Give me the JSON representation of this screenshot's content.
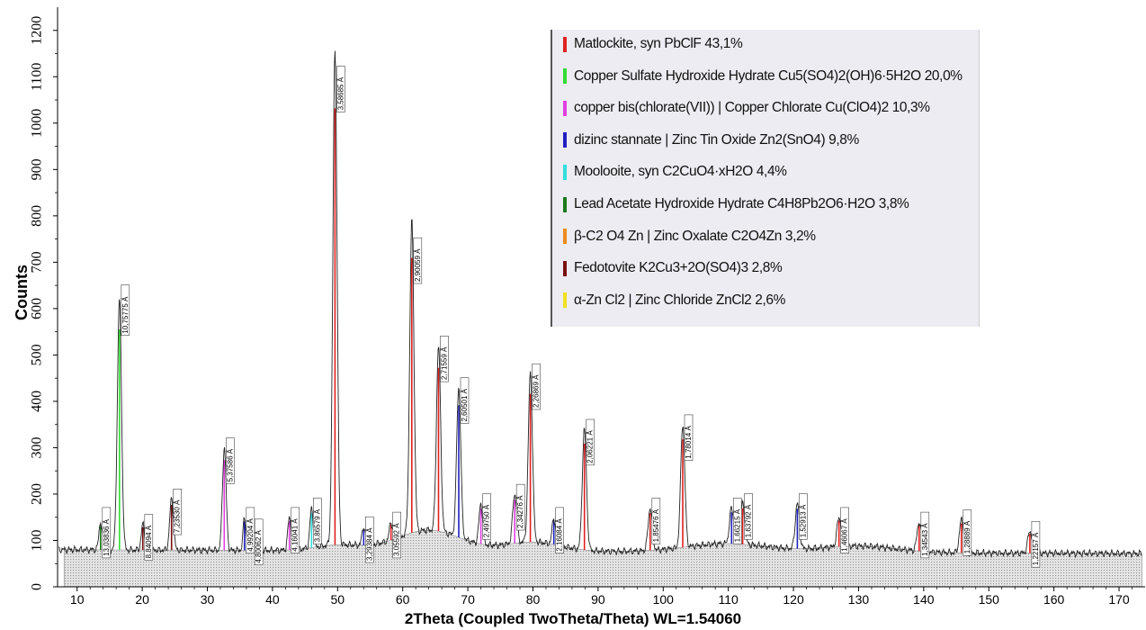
{
  "chart_data": {
    "type": "line",
    "xlabel": "2Theta (Coupled TwoTheta/Theta) WL=1.54060",
    "ylabel": "Counts",
    "xlim": [
      7,
      174
    ],
    "ylim": [
      0,
      1250
    ],
    "x_ticks": [
      10,
      20,
      30,
      40,
      50,
      60,
      70,
      80,
      90,
      100,
      110,
      120,
      130,
      140,
      150,
      160,
      170
    ],
    "y_ticks": [
      0,
      100,
      200,
      300,
      400,
      500,
      600,
      700,
      800,
      900,
      1000,
      1100,
      1200
    ],
    "grid": false,
    "legend_position": "top-right",
    "series": [
      {
        "name": "Matlockite, syn PbClF 43,1%",
        "color": "#e02020"
      },
      {
        "name": "Copper Sulfate Hydroxide Hydrate Cu5(SO4)2(OH)6·5H2O 20,0%",
        "color": "#33dd33"
      },
      {
        "name": "copper bis(chlorate(VII)) | Copper Chlorate Cu(ClO4)2 10,3%",
        "color": "#e040e0"
      },
      {
        "name": "dizinc stannate | Zinc Tin Oxide Zn2(SnO4) 9,8%",
        "color": "#2020c0"
      },
      {
        "name": "Moolooite, syn C2CuO4·xH2O 4,4%",
        "color": "#33dddd"
      },
      {
        "name": "Lead Acetate Hydroxide Hydrate C4H8Pb2O6·H2O 3,8%",
        "color": "#1a7a1a"
      },
      {
        "name": "β-C2 O4 Zn | Zinc Oxalate C2O4Zn 3,2%",
        "color": "#f08a20"
      },
      {
        "name": "Fedotovite K2Cu3+2O(SO4)3 2,8%",
        "color": "#7a1010"
      },
      {
        "name": "α-Zn Cl2 | Zinc Chloride ZnCl2 2,6%",
        "color": "#f0e020"
      }
    ],
    "peaks": [
      {
        "x": 13.6,
        "y": 140,
        "label": "13,03836 Å",
        "w": 0.35,
        "color": "#1a7a1a"
      },
      {
        "x": 16.5,
        "y": 620,
        "label": "10,75775 Å",
        "w": 0.45,
        "color": "#33dd33"
      },
      {
        "x": 20.1,
        "y": 135,
        "label": "8,84094 Å",
        "w": 0.35,
        "color": "#7a1010"
      },
      {
        "x": 24.5,
        "y": 190,
        "label": "7,23530 Å",
        "w": 0.4,
        "color": "#7a1010"
      },
      {
        "x": 32.6,
        "y": 300,
        "label": "5,37586 Å",
        "w": 0.4,
        "color": "#e040e0"
      },
      {
        "x": 35.7,
        "y": 150,
        "label": "4,99204 Å",
        "w": 0.3,
        "color": "#2020c0"
      },
      {
        "x": 37.0,
        "y": 125,
        "label": "4,80062 Å",
        "w": 0.3,
        "color": "#f0e020"
      },
      {
        "x": 42.6,
        "y": 150,
        "label": "4,16041 Å",
        "w": 0.35,
        "color": "#e040e0"
      },
      {
        "x": 46.0,
        "y": 170,
        "label": "3,86579 Å",
        "w": 0.35,
        "color": "#33dddd"
      },
      {
        "x": 49.6,
        "y": 1160,
        "label": "3,58685 Å",
        "w": 0.45,
        "color": "#e02020"
      },
      {
        "x": 54.0,
        "y": 130,
        "label": "3,29384 Å",
        "w": 0.35,
        "color": "#2020c0"
      },
      {
        "x": 58.2,
        "y": 140,
        "label": "3,05592 Å",
        "w": 0.35,
        "color": "#e02020"
      },
      {
        "x": 61.4,
        "y": 790,
        "label": "2,90059 Å",
        "w": 0.45,
        "color": "#e02020"
      },
      {
        "x": 65.5,
        "y": 520,
        "label": "2,71559 Å",
        "w": 0.45,
        "color": "#e02020"
      },
      {
        "x": 68.6,
        "y": 430,
        "label": "2,60501 Å",
        "w": 0.45,
        "color": "#2020c0"
      },
      {
        "x": 72.0,
        "y": 180,
        "label": "2,49750 Å",
        "w": 0.4,
        "color": "#e040e0"
      },
      {
        "x": 77.2,
        "y": 200,
        "label": "2,34276 Å",
        "w": 0.45,
        "color": "#e040e0"
      },
      {
        "x": 79.6,
        "y": 460,
        "label": "2,26869 Å",
        "w": 0.45,
        "color": "#e02020"
      },
      {
        "x": 83.2,
        "y": 150,
        "label": "2,16084 Å",
        "w": 0.35,
        "color": "#2020c0"
      },
      {
        "x": 87.9,
        "y": 340,
        "label": "2,06221 Å",
        "w": 0.45,
        "color": "#e02020"
      },
      {
        "x": 98.0,
        "y": 170,
        "label": "1,85476 Å",
        "w": 0.45,
        "color": "#e02020"
      },
      {
        "x": 103.0,
        "y": 350,
        "label": "1,78014 Å",
        "w": 0.45,
        "color": "#e02020"
      },
      {
        "x": 110.5,
        "y": 170,
        "label": "1,66215 Å",
        "w": 0.45,
        "color": "#2020c0"
      },
      {
        "x": 112.2,
        "y": 180,
        "label": "1,63792 Å",
        "w": 0.45,
        "color": "#e02020"
      },
      {
        "x": 120.6,
        "y": 180,
        "label": "1,52913 Å",
        "w": 0.45,
        "color": "#2020c0"
      },
      {
        "x": 127.0,
        "y": 150,
        "label": "1,46067 Å",
        "w": 0.45,
        "color": "#e02020"
      },
      {
        "x": 139.3,
        "y": 140,
        "label": "1,34543 Å",
        "w": 0.45,
        "color": "#e02020"
      },
      {
        "x": 145.8,
        "y": 145,
        "label": "1,28889 Å",
        "w": 0.45,
        "color": "#e02020"
      },
      {
        "x": 156.3,
        "y": 120,
        "label": "1,22157 Å",
        "w": 0.45,
        "color": "#e02020"
      }
    ]
  }
}
